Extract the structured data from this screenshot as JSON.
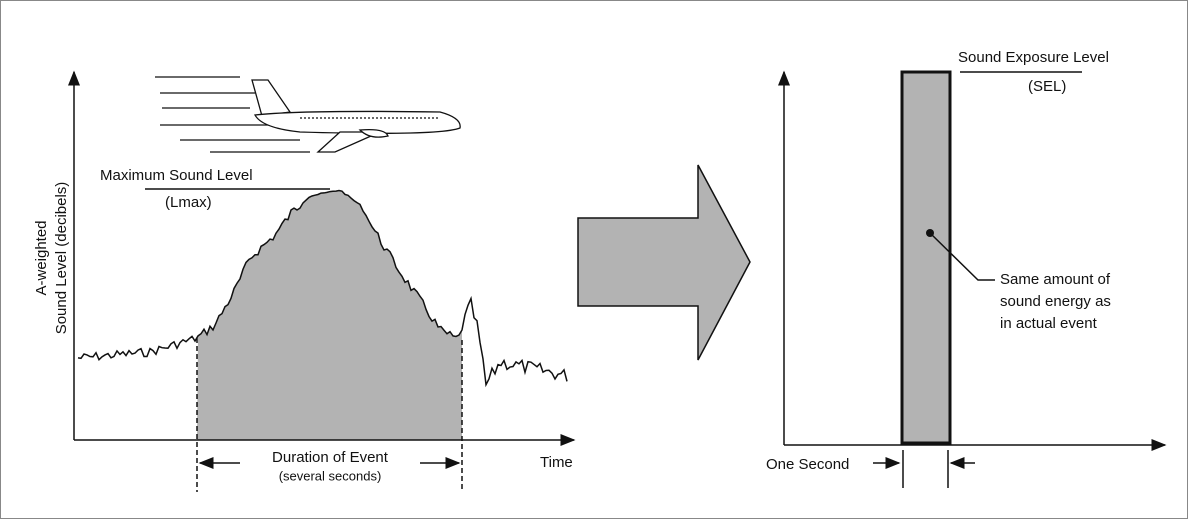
{
  "left_panel": {
    "y_axis_label": [
      "A-weighted",
      "Sound Level (decibels)"
    ],
    "peak_label": {
      "title": "Maximum Sound Level",
      "abbr": "(Lmax)"
    },
    "duration_label": {
      "title": "Duration of Event",
      "note": "(several seconds)"
    },
    "x_axis_label": "Time"
  },
  "right_panel": {
    "level_label": {
      "title": "Sound Exposure Level",
      "abbr": "(SEL)"
    },
    "annotation": [
      "Same amount of",
      "sound energy as",
      "in actual event"
    ],
    "width_label": "One Second"
  }
}
